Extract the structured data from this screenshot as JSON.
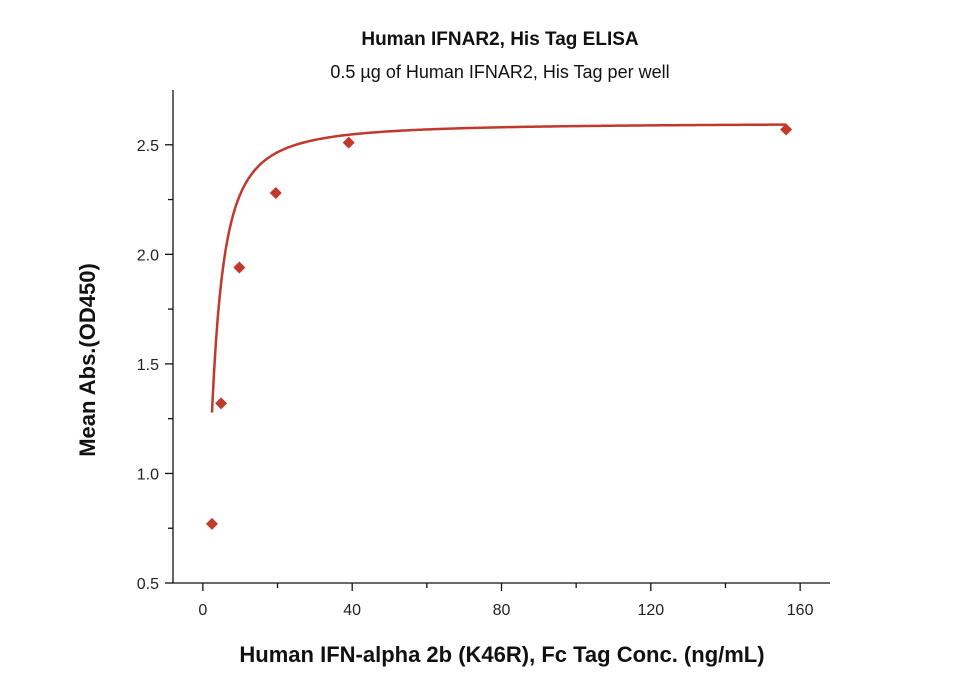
{
  "chart_data": {
    "type": "scatter",
    "title": "Human IFNAR2, His Tag ELISA",
    "subtitle": "0.5 µg of Human IFNAR2, His Tag per well",
    "xlabel": "Human IFN-alpha 2b (K46R), Fc Tag Conc. (ng/mL)",
    "ylabel": "Mean Abs.(OD450)",
    "xlim": [
      -8,
      168
    ],
    "ylim": [
      0.5,
      2.75
    ],
    "x_ticks": [
      0,
      40,
      80,
      120,
      160
    ],
    "x_tick_labels": [
      "0",
      "40",
      "80",
      "120",
      "160"
    ],
    "y_ticks": [
      0.5,
      1.0,
      1.5,
      2.0,
      2.5
    ],
    "y_tick_labels": [
      "0.5",
      "1.0",
      "1.5",
      "2.0",
      "2.5"
    ],
    "grid": false,
    "marker": "diamond",
    "color": "#c0392b",
    "series": [
      {
        "x": [
          2.44,
          4.88,
          9.77,
          19.53,
          39.06,
          156.25
        ],
        "y": [
          0.77,
          1.32,
          1.94,
          2.28,
          2.51,
          2.57
        ]
      }
    ],
    "fit_curve": {
      "model": "4PL",
      "bottom": 0.0,
      "top": 2.6,
      "ec50": 2.5,
      "hill": 1.4
    }
  }
}
